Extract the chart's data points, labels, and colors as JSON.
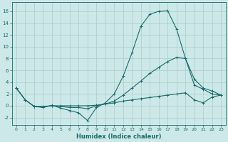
{
  "xlabel": "Humidex (Indice chaleur)",
  "xlim": [
    -0.5,
    23.5
  ],
  "ylim": [
    -3.2,
    17.5
  ],
  "yticks": [
    -2,
    0,
    2,
    4,
    6,
    8,
    10,
    12,
    14,
    16
  ],
  "xticks": [
    0,
    1,
    2,
    3,
    4,
    5,
    6,
    7,
    8,
    9,
    10,
    11,
    12,
    13,
    14,
    15,
    16,
    17,
    18,
    19,
    20,
    21,
    22,
    23
  ],
  "bg_color": "#cde8e8",
  "grid_color": "#a8cccc",
  "line_color": "#1a6b6b",
  "x": [
    0,
    1,
    2,
    3,
    4,
    5,
    6,
    7,
    8,
    9,
    10,
    11,
    12,
    13,
    14,
    15,
    16,
    17,
    18,
    19,
    20,
    21,
    22,
    23
  ],
  "line1": [
    3.0,
    1.0,
    -0.1,
    -0.3,
    0.1,
    -0.4,
    -0.8,
    -1.2,
    -2.5,
    -0.3,
    0.5,
    2.0,
    5.0,
    9.0,
    13.5,
    15.5,
    16.0,
    16.1,
    13.0,
    8.0,
    4.5,
    3.0,
    2.5,
    1.8
  ],
  "line2": [
    3.0,
    1.0,
    -0.1,
    -0.2,
    0.0,
    -0.1,
    -0.3,
    -0.3,
    -0.5,
    0.0,
    0.3,
    0.8,
    1.8,
    3.0,
    4.2,
    5.5,
    6.5,
    7.5,
    8.2,
    8.0,
    3.5,
    2.8,
    2.0,
    1.8
  ],
  "line3": [
    3.0,
    1.0,
    -0.1,
    -0.1,
    0.0,
    0.0,
    0.0,
    0.0,
    0.0,
    0.1,
    0.3,
    0.5,
    0.8,
    1.0,
    1.2,
    1.4,
    1.6,
    1.8,
    2.0,
    2.2,
    1.0,
    0.5,
    1.5,
    1.8
  ]
}
